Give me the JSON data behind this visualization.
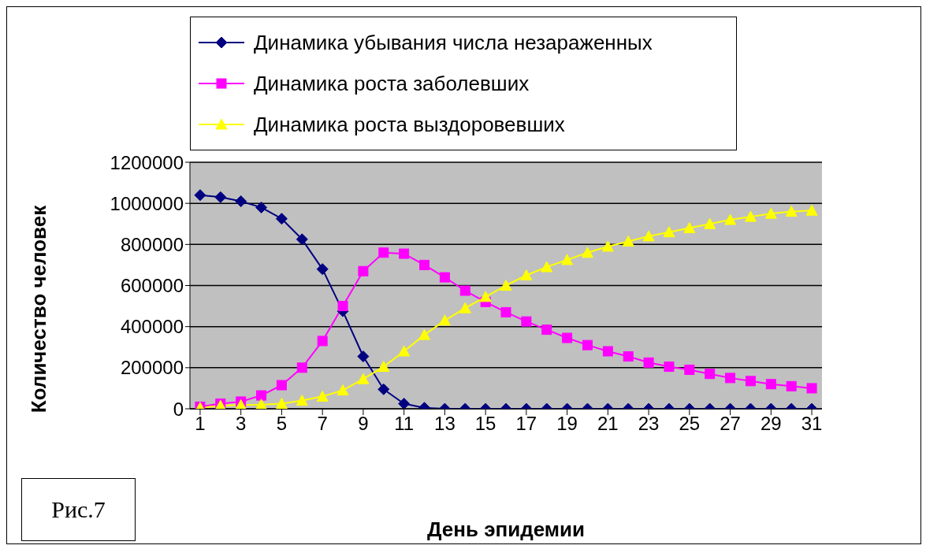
{
  "chart_data": {
    "type": "line",
    "xlabel": "День эпидемии",
    "ylabel": "Количество человек",
    "x": [
      1,
      2,
      3,
      4,
      5,
      6,
      7,
      8,
      9,
      10,
      11,
      12,
      13,
      14,
      15,
      16,
      17,
      18,
      19,
      20,
      21,
      22,
      23,
      24,
      25,
      26,
      27,
      28,
      29,
      30,
      31
    ],
    "xlim": [
      0.5,
      31.5
    ],
    "xticks": [
      1,
      3,
      5,
      7,
      9,
      11,
      13,
      15,
      17,
      19,
      21,
      23,
      25,
      27,
      29,
      31
    ],
    "series": [
      {
        "name": "Динамика убывания числа незараженных",
        "color": "#000080",
        "marker": "diamond",
        "values": [
          1040000,
          1030000,
          1010000,
          980000,
          925000,
          825000,
          680000,
          475000,
          255000,
          95000,
          25000,
          5000,
          0,
          0,
          0,
          0,
          0,
          0,
          0,
          0,
          0,
          0,
          0,
          0,
          0,
          0,
          0,
          0,
          0,
          0,
          0
        ]
      },
      {
        "name": "Динамика роста заболевших",
        "color": "#ff00ff",
        "marker": "square",
        "values": [
          10000,
          25000,
          35000,
          65000,
          115000,
          200000,
          330000,
          500000,
          670000,
          760000,
          755000,
          700000,
          640000,
          575000,
          520000,
          470000,
          425000,
          385000,
          345000,
          310000,
          280000,
          255000,
          225000,
          205000,
          190000,
          170000,
          150000,
          135000,
          120000,
          110000,
          100000
        ]
      },
      {
        "name": "Динамика роста выздоровевших",
        "color": "#ffff00",
        "marker": "triangle",
        "values": [
          5000,
          15000,
          18000,
          20000,
          25000,
          40000,
          60000,
          90000,
          145000,
          205000,
          280000,
          360000,
          430000,
          490000,
          545000,
          600000,
          650000,
          690000,
          725000,
          760000,
          790000,
          815000,
          840000,
          860000,
          880000,
          900000,
          920000,
          935000,
          950000,
          960000,
          965000
        ]
      }
    ],
    "ylim": [
      0,
      1200000
    ],
    "yticks": [
      0,
      200000,
      400000,
      600000,
      800000,
      1000000,
      1200000
    ],
    "grid": "y",
    "legend": "top",
    "annotations": [
      "Рис.7"
    ]
  }
}
